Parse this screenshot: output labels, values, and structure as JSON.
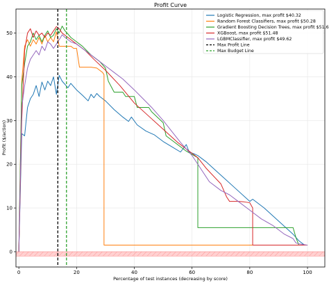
{
  "chart_data": {
    "type": "line",
    "title": "Profit Curve",
    "xlabel": "Percentage of test instances (decreasing by score)",
    "ylabel": "Profit ($/action)",
    "xlim": [
      -1,
      106
    ],
    "ylim": [
      -3.5,
      55.5
    ],
    "xticks": [
      0,
      20,
      40,
      60,
      80,
      100
    ],
    "yticks": [
      0,
      10,
      20,
      30,
      40,
      50
    ],
    "grid": true,
    "legend_position": "top-right",
    "series": [
      {
        "name": "Logistic Regression, max profit $40.32",
        "color": "#1f77b4",
        "points": [
          [
            0,
            0
          ],
          [
            1,
            27
          ],
          [
            2,
            26.5
          ],
          [
            3,
            33
          ],
          [
            4,
            35
          ],
          [
            5,
            36
          ],
          [
            6,
            38
          ],
          [
            7,
            35.5
          ],
          [
            8,
            38.8
          ],
          [
            9,
            37
          ],
          [
            10,
            39
          ],
          [
            11,
            38
          ],
          [
            12,
            40
          ],
          [
            13,
            36
          ],
          [
            14,
            40.32
          ],
          [
            15,
            39
          ],
          [
            17,
            37.5
          ],
          [
            18,
            38.5
          ],
          [
            20,
            37
          ],
          [
            22,
            35.8
          ],
          [
            24,
            34.5
          ],
          [
            25,
            36
          ],
          [
            26,
            35.2
          ],
          [
            27,
            36.2
          ],
          [
            28,
            35.5
          ],
          [
            30,
            34.5
          ],
          [
            33,
            32.5
          ],
          [
            36,
            30.8
          ],
          [
            38,
            29.8
          ],
          [
            39,
            30.8
          ],
          [
            41,
            29
          ],
          [
            44,
            27.6
          ],
          [
            47,
            26.7
          ],
          [
            50,
            25.2
          ],
          [
            53,
            24
          ],
          [
            56,
            22.8
          ],
          [
            58,
            24.5
          ],
          [
            59,
            22.8
          ],
          [
            61,
            22.3
          ],
          [
            62,
            22
          ],
          [
            63,
            21.5
          ],
          [
            65,
            20.5
          ],
          [
            70,
            17.5
          ],
          [
            75,
            14.5
          ],
          [
            80,
            11.5
          ],
          [
            81,
            12
          ],
          [
            85,
            10
          ],
          [
            90,
            7
          ],
          [
            95,
            4
          ],
          [
            97,
            2.5
          ],
          [
            99,
            1.5
          ],
          [
            100,
            1.5
          ]
        ]
      },
      {
        "name": "Random Forest Classifiers, max profit $50.28",
        "color": "#ff7f0e",
        "points": [
          [
            0,
            0
          ],
          [
            1,
            39
          ],
          [
            2,
            47
          ],
          [
            3,
            48.5
          ],
          [
            4,
            47
          ],
          [
            5,
            48.5
          ],
          [
            6,
            47.5
          ],
          [
            7,
            49
          ],
          [
            8,
            47.5
          ],
          [
            9,
            49.5
          ],
          [
            10,
            48
          ],
          [
            11,
            49
          ],
          [
            12,
            48
          ],
          [
            13,
            50.28
          ],
          [
            14,
            47
          ],
          [
            15,
            47
          ],
          [
            16,
            47
          ],
          [
            18,
            47
          ],
          [
            19,
            46.5
          ],
          [
            20,
            46.5
          ],
          [
            21,
            42.2
          ],
          [
            25,
            42.2
          ],
          [
            27,
            42
          ],
          [
            29,
            41
          ],
          [
            29.5,
            40.5
          ],
          [
            29.5,
            1.5
          ],
          [
            100,
            1.5
          ]
        ]
      },
      {
        "name": "Gradient Boosting Decision Trees, max profit $51.60",
        "color": "#2ca02c",
        "points": [
          [
            0,
            0
          ],
          [
            1,
            38
          ],
          [
            2,
            43
          ],
          [
            3,
            47
          ],
          [
            4,
            48
          ],
          [
            5,
            50
          ],
          [
            6,
            48.5
          ],
          [
            7,
            49.5
          ],
          [
            8,
            48
          ],
          [
            9,
            49.5
          ],
          [
            10,
            50.5
          ],
          [
            11,
            49
          ],
          [
            12,
            49.5
          ],
          [
            13,
            51
          ],
          [
            14,
            50
          ],
          [
            15,
            51.6
          ],
          [
            16,
            50.5
          ],
          [
            17,
            49.8
          ],
          [
            18,
            49
          ],
          [
            20,
            48
          ],
          [
            22,
            47
          ],
          [
            25,
            45
          ],
          [
            28,
            43.5
          ],
          [
            30,
            42
          ],
          [
            31,
            39
          ],
          [
            33,
            36.5
          ],
          [
            36,
            36.5
          ],
          [
            37,
            35.5
          ],
          [
            40,
            35.5
          ],
          [
            41,
            33
          ],
          [
            45,
            33
          ],
          [
            46,
            32
          ],
          [
            50,
            29.5
          ],
          [
            51,
            26.5
          ],
          [
            58,
            23
          ],
          [
            62,
            21.5
          ],
          [
            62,
            5.5
          ],
          [
            95,
            5.5
          ],
          [
            96,
            3.2
          ],
          [
            97,
            1.5
          ],
          [
            100,
            1.5
          ]
        ]
      },
      {
        "name": "XGBoost, max profit $51.48",
        "color": "#d62728",
        "points": [
          [
            0,
            0
          ],
          [
            1,
            30
          ],
          [
            2,
            46
          ],
          [
            3,
            50
          ],
          [
            4,
            51
          ],
          [
            5,
            49
          ],
          [
            6,
            50.5
          ],
          [
            7,
            49.5
          ],
          [
            8,
            50
          ],
          [
            9,
            49
          ],
          [
            10,
            50
          ],
          [
            11,
            49.5
          ],
          [
            12,
            50.5
          ],
          [
            13,
            51.48
          ],
          [
            14,
            51
          ],
          [
            15,
            50
          ],
          [
            17,
            49
          ],
          [
            20,
            47.5
          ],
          [
            23,
            46
          ],
          [
            26,
            44
          ],
          [
            30,
            41.5
          ],
          [
            35,
            38
          ],
          [
            40,
            34
          ],
          [
            45,
            31
          ],
          [
            50,
            28
          ],
          [
            55,
            25
          ],
          [
            60,
            22.5
          ],
          [
            62,
            21.5
          ],
          [
            65,
            19
          ],
          [
            70,
            15.5
          ],
          [
            72,
            12.5
          ],
          [
            73,
            11.5
          ],
          [
            76,
            11.5
          ],
          [
            78,
            11.4
          ],
          [
            80,
            11.2
          ],
          [
            81,
            10
          ],
          [
            81,
            1.5
          ],
          [
            100,
            1.5
          ]
        ]
      },
      {
        "name": "LGBMClassifier, max profit $49.62",
        "color": "#9467bd",
        "points": [
          [
            0,
            0
          ],
          [
            1,
            33
          ],
          [
            2,
            38
          ],
          [
            3,
            42
          ],
          [
            4,
            44
          ],
          [
            5,
            45
          ],
          [
            6,
            46
          ],
          [
            7,
            45
          ],
          [
            8,
            47
          ],
          [
            9,
            46
          ],
          [
            10,
            48
          ],
          [
            11,
            47.5
          ],
          [
            12,
            46.5
          ],
          [
            13,
            47.5
          ],
          [
            14,
            48.5
          ],
          [
            15,
            49.62
          ],
          [
            16,
            49
          ],
          [
            17,
            48.5
          ],
          [
            18,
            48
          ],
          [
            20,
            47.5
          ],
          [
            23,
            46
          ],
          [
            26,
            44.5
          ],
          [
            30,
            42.5
          ],
          [
            33,
            41
          ],
          [
            36,
            39.5
          ],
          [
            40,
            37
          ],
          [
            43,
            35
          ],
          [
            46,
            33
          ],
          [
            50,
            30
          ],
          [
            53,
            27.5
          ],
          [
            56,
            25
          ],
          [
            60,
            22
          ],
          [
            63,
            19
          ],
          [
            66,
            16
          ],
          [
            70,
            14
          ],
          [
            73,
            13
          ],
          [
            76,
            11.5
          ],
          [
            80,
            9.5
          ],
          [
            84,
            7.5
          ],
          [
            88,
            6
          ],
          [
            92,
            4
          ],
          [
            95,
            3
          ],
          [
            96,
            2
          ],
          [
            97,
            1.8
          ],
          [
            100,
            1.5
          ]
        ]
      }
    ],
    "reference_lines": [
      {
        "name": "Max Profit Line",
        "color": "#000000",
        "x": 13.5
      },
      {
        "name": "Max Budget Line",
        "color": "#2ca02c",
        "x": 16.5
      }
    ],
    "tick_labels": {
      "x": [
        "0",
        "20",
        "40",
        "60",
        "80",
        "100"
      ],
      "y": [
        "0",
        "10",
        "20",
        "30",
        "40",
        "50"
      ]
    },
    "shaded_band": {
      "y": [
        -1,
        0
      ],
      "color": "#ffb3b3"
    }
  }
}
